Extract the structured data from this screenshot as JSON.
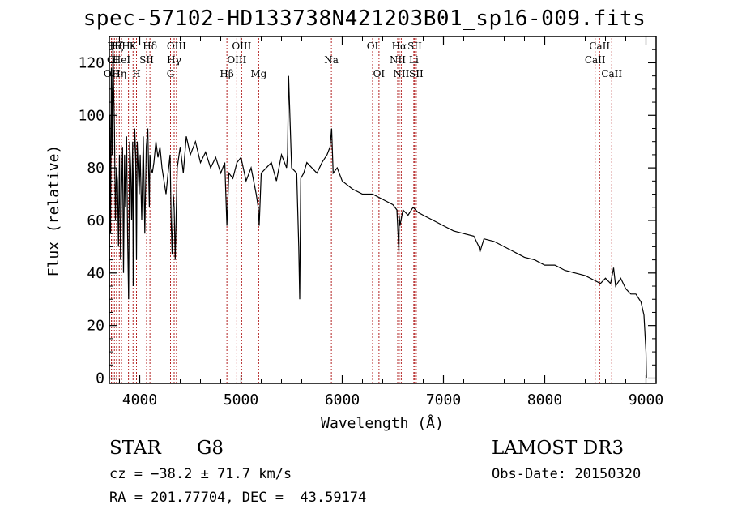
{
  "chart_data": {
    "type": "line",
    "title": "spec-57102-HD133738N421203B01_sp16-009.fits",
    "xlabel": "Wavelength (Å)",
    "ylabel": "Flux (relative)",
    "xlim": [
      3700,
      9100
    ],
    "ylim": [
      -2,
      130
    ],
    "xticks": [
      4000,
      5000,
      6000,
      7000,
      8000,
      9000
    ],
    "yticks": [
      0,
      20,
      40,
      60,
      80,
      100,
      120
    ],
    "grid": false,
    "series": [
      {
        "name": "flux",
        "x": [
          3700,
          3705,
          3712,
          3720,
          3728,
          3735,
          3742,
          3750,
          3760,
          3770,
          3780,
          3790,
          3800,
          3810,
          3820,
          3830,
          3840,
          3850,
          3860,
          3870,
          3880,
          3890,
          3900,
          3910,
          3920,
          3930,
          3935,
          3940,
          3950,
          3960,
          3968,
          3975,
          3985,
          3995,
          4005,
          4020,
          4035,
          4050,
          4065,
          4080,
          4095,
          4101,
          4110,
          4125,
          4140,
          4160,
          4180,
          4200,
          4220,
          4240,
          4260,
          4280,
          4300,
          4310,
          4320,
          4330,
          4340,
          4350,
          4370,
          4400,
          4430,
          4460,
          4500,
          4550,
          4600,
          4650,
          4700,
          4750,
          4800,
          4840,
          4861,
          4880,
          4920,
          4960,
          5000,
          5050,
          5100,
          5150,
          5170,
          5180,
          5200,
          5250,
          5300,
          5350,
          5400,
          5450,
          5460,
          5470,
          5500,
          5550,
          5570,
          5580,
          5590,
          5620,
          5650,
          5700,
          5750,
          5800,
          5850,
          5880,
          5895,
          5910,
          5950,
          6000,
          6100,
          6200,
          6300,
          6400,
          6500,
          6540,
          6560,
          6563,
          6570,
          6600,
          6650,
          6700,
          6750,
          6800,
          6900,
          7000,
          7100,
          7200,
          7300,
          7350,
          7360,
          7400,
          7500,
          7600,
          7700,
          7800,
          7900,
          8000,
          8100,
          8200,
          8300,
          8400,
          8500,
          8550,
          8600,
          8650,
          8680,
          8700,
          8750,
          8800,
          8850,
          8900,
          8950,
          8980,
          9000,
          9005
        ],
        "values": [
          0,
          100,
          55,
          118,
          85,
          128,
          110,
          95,
          60,
          80,
          75,
          50,
          85,
          45,
          70,
          88,
          40,
          85,
          65,
          92,
          55,
          30,
          90,
          80,
          60,
          90,
          35,
          75,
          95,
          85,
          45,
          90,
          80,
          70,
          85,
          60,
          92,
          55,
          88,
          95,
          65,
          85,
          80,
          78,
          82,
          90,
          84,
          88,
          80,
          75,
          70,
          78,
          85,
          60,
          47,
          70,
          65,
          45,
          80,
          88,
          78,
          92,
          85,
          90,
          82,
          86,
          80,
          84,
          78,
          82,
          58,
          78,
          76,
          82,
          84,
          75,
          80,
          70,
          65,
          58,
          78,
          80,
          82,
          75,
          85,
          80,
          85,
          115,
          80,
          78,
          50,
          30,
          76,
          78,
          82,
          80,
          78,
          82,
          85,
          88,
          95,
          78,
          80,
          75,
          72,
          70,
          70,
          68,
          66,
          64,
          48,
          62,
          58,
          64,
          62,
          65,
          63,
          62,
          60,
          58,
          56,
          55,
          54,
          50,
          48,
          53,
          52,
          50,
          48,
          46,
          45,
          43,
          43,
          41,
          40,
          39,
          37,
          36,
          38,
          36,
          42,
          35,
          38,
          34,
          32,
          32,
          29,
          24,
          10,
          0
        ]
      }
    ],
    "line_markers": [
      {
        "wavelength": 3720,
        "label": "OII",
        "row": 3
      },
      {
        "wavelength": 3734,
        "label": "OI",
        "row": 2
      },
      {
        "wavelength": 3750,
        "label": "Hθ",
        "row": 1
      },
      {
        "wavelength": 3771,
        "label": "Hζ",
        "row": 1
      },
      {
        "wavelength": 3798,
        "label": "Hη",
        "row": 3
      },
      {
        "wavelength": 3820,
        "label": "HeI",
        "row": 2
      },
      {
        "wavelength": 3889,
        "label": "Hε",
        "row": 1
      },
      {
        "wavelength": 3934,
        "label": "K",
        "row": 1
      },
      {
        "wavelength": 3968,
        "label": "H",
        "row": 3
      },
      {
        "wavelength": 4068,
        "label": "SII",
        "row": 2
      },
      {
        "wavelength": 4101,
        "label": "Hδ",
        "row": 1
      },
      {
        "wavelength": 4304,
        "label": "G",
        "row": 3
      },
      {
        "wavelength": 4340,
        "label": "Hγ",
        "row": 2
      },
      {
        "wavelength": 4363,
        "label": "OIII",
        "row": 1
      },
      {
        "wavelength": 4861,
        "label": "Hβ",
        "row": 3
      },
      {
        "wavelength": 4959,
        "label": "OIII",
        "row": 2
      },
      {
        "wavelength": 5007,
        "label": "OIII",
        "row": 1
      },
      {
        "wavelength": 5175,
        "label": "Mg",
        "row": 3
      },
      {
        "wavelength": 5893,
        "label": "Na",
        "row": 2
      },
      {
        "wavelength": 6300,
        "label": "OI",
        "row": 1
      },
      {
        "wavelength": 6363,
        "label": "OI",
        "row": 3
      },
      {
        "wavelength": 6548,
        "label": "NII",
        "row": 2
      },
      {
        "wavelength": 6563,
        "label": "Hα",
        "row": 1
      },
      {
        "wavelength": 6583,
        "label": "NII",
        "row": 3
      },
      {
        "wavelength": 6707,
        "label": "Li",
        "row": 2
      },
      {
        "wavelength": 6716,
        "label": "SII",
        "row": 1
      },
      {
        "wavelength": 6731,
        "label": "SII",
        "row": 3
      },
      {
        "wavelength": 8498,
        "label": "CaII",
        "row": 2
      },
      {
        "wavelength": 8542,
        "label": "CaII",
        "row": 1
      },
      {
        "wavelength": 8662,
        "label": "CaII",
        "row": 3
      }
    ]
  },
  "info": {
    "class": "STAR",
    "subclass": "G8",
    "survey": "LAMOST DR3",
    "cz": "cz = −38.2 ± 71.7 km/s",
    "obs_date": "Obs-Date: 20150320",
    "coords": "RA = 201.77704, DEC =  43.59174"
  },
  "colors": {
    "line": "#000000",
    "marker": "#b22222",
    "axis": "#000000"
  }
}
